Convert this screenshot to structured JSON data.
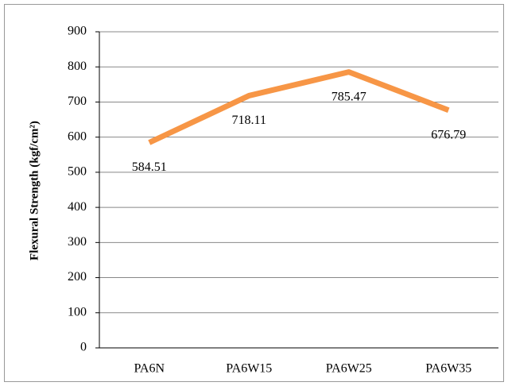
{
  "chart_data": {
    "type": "line",
    "y_label": "Flexural Strength (kgf/cm²)",
    "categories": [
      "PA6N",
      "PA6W15",
      "PA6W25",
      "PA6W35"
    ],
    "series": [
      {
        "name": "Flexural Strength",
        "color": "#f79646",
        "values": [
          584.51,
          718.11,
          785.47,
          676.79
        ]
      }
    ],
    "ylim": [
      0,
      900
    ],
    "yticks": [
      0,
      100,
      200,
      300,
      400,
      500,
      600,
      700,
      800,
      900
    ],
    "grid": true
  }
}
